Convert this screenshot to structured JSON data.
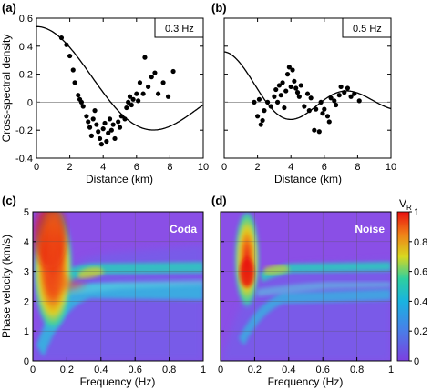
{
  "panels": {
    "a": {
      "label": "(a)",
      "box": "0.3 Hz"
    },
    "b": {
      "label": "(b)",
      "box": "0.5 Hz"
    },
    "c": {
      "label": "(c)",
      "tag": "Coda"
    },
    "d": {
      "label": "(d)",
      "tag": "Noise"
    }
  },
  "colorbar": {
    "label": "V",
    "label_sub": "R",
    "ticks": [
      "0",
      "0.2",
      "0.4",
      "0.6",
      "0.8",
      "1"
    ]
  },
  "colors": {
    "background": "#8a4fe6",
    "ridge": "#e21a12",
    "mid": "#28c4c0",
    "accent": "#f0c000"
  },
  "chart_data": [
    {
      "id": "a",
      "type": "scatter",
      "title": "",
      "xlabel": "Distance (km)",
      "ylabel": "Cross-spectral density",
      "xlim": [
        0,
        10
      ],
      "ylim": [
        -0.4,
        0.6
      ],
      "xticks": [
        "0",
        "2",
        "4",
        "6",
        "8",
        "10"
      ],
      "yticks": [
        "-0.4",
        "-0.2",
        "0",
        "0.2",
        "0.4",
        "0.6"
      ],
      "grid": false,
      "points": [
        [
          1.5,
          0.46
        ],
        [
          1.8,
          0.41
        ],
        [
          2.0,
          0.33
        ],
        [
          2.2,
          0.23
        ],
        [
          2.3,
          0.14
        ],
        [
          2.5,
          0.05
        ],
        [
          2.6,
          0.02
        ],
        [
          2.7,
          0.0
        ],
        [
          2.8,
          -0.03
        ],
        [
          3.0,
          -0.1
        ],
        [
          3.1,
          -0.14
        ],
        [
          3.2,
          -0.18
        ],
        [
          3.3,
          -0.24
        ],
        [
          3.4,
          -0.12
        ],
        [
          3.5,
          -0.06
        ],
        [
          3.6,
          -0.16
        ],
        [
          3.7,
          -0.21
        ],
        [
          3.8,
          -0.26
        ],
        [
          3.9,
          -0.3
        ],
        [
          4.0,
          -0.19
        ],
        [
          4.1,
          -0.15
        ],
        [
          4.2,
          -0.28
        ],
        [
          4.3,
          -0.22
        ],
        [
          4.4,
          -0.12
        ],
        [
          4.5,
          -0.2
        ],
        [
          4.6,
          -0.16
        ],
        [
          4.7,
          -0.26
        ],
        [
          4.9,
          -0.14
        ],
        [
          5.0,
          -0.18
        ],
        [
          5.1,
          -0.1
        ],
        [
          5.3,
          -0.12
        ],
        [
          5.4,
          -0.04
        ],
        [
          5.5,
          0.0
        ],
        [
          5.6,
          0.04
        ],
        [
          5.7,
          -0.02
        ],
        [
          5.8,
          0.02
        ],
        [
          6.0,
          0.06
        ],
        [
          6.1,
          0.01
        ],
        [
          6.2,
          0.14
        ],
        [
          6.4,
          0.06
        ],
        [
          6.5,
          0.32
        ],
        [
          6.7,
          0.11
        ],
        [
          6.9,
          0.18
        ],
        [
          7.1,
          0.21
        ],
        [
          7.3,
          0.06
        ],
        [
          7.6,
          0.14
        ],
        [
          7.9,
          0.04
        ],
        [
          8.2,
          0.22
        ]
      ]
    },
    {
      "id": "b",
      "type": "scatter",
      "title": "",
      "xlabel": "Distance (km)",
      "ylabel": "",
      "xlim": [
        0,
        10
      ],
      "ylim": [
        -0.4,
        0.6
      ],
      "xticks": [
        "0",
        "2",
        "4",
        "6",
        "8",
        "10"
      ],
      "yticks": [],
      "grid": false,
      "points": [
        [
          1.8,
          0.0
        ],
        [
          2.0,
          -0.1
        ],
        [
          2.1,
          0.02
        ],
        [
          2.2,
          -0.16
        ],
        [
          2.3,
          -0.13
        ],
        [
          2.4,
          -0.06
        ],
        [
          2.6,
          0.0
        ],
        [
          2.8,
          -0.03
        ],
        [
          3.0,
          0.04
        ],
        [
          3.1,
          0.09
        ],
        [
          3.2,
          0.0
        ],
        [
          3.3,
          0.12
        ],
        [
          3.4,
          0.05
        ],
        [
          3.5,
          0.14
        ],
        [
          3.6,
          -0.04
        ],
        [
          3.7,
          0.08
        ],
        [
          3.8,
          0.2
        ],
        [
          3.9,
          0.25
        ],
        [
          4.0,
          0.11
        ],
        [
          4.1,
          0.23
        ],
        [
          4.2,
          0.15
        ],
        [
          4.3,
          0.1
        ],
        [
          4.4,
          0.07
        ],
        [
          4.5,
          0.04
        ],
        [
          4.6,
          0.12
        ],
        [
          4.8,
          -0.03
        ],
        [
          5.0,
          0.06
        ],
        [
          5.1,
          -0.06
        ],
        [
          5.2,
          0.03
        ],
        [
          5.4,
          -0.2
        ],
        [
          5.5,
          -0.05
        ],
        [
          5.7,
          -0.21
        ],
        [
          5.8,
          0.0
        ],
        [
          5.9,
          -0.08
        ],
        [
          6.0,
          -0.05
        ],
        [
          6.2,
          -0.1
        ],
        [
          6.3,
          -0.14
        ],
        [
          6.4,
          0.03
        ],
        [
          6.6,
          0.01
        ],
        [
          6.7,
          -0.02
        ],
        [
          6.9,
          0.05
        ],
        [
          7.0,
          0.11
        ],
        [
          7.2,
          0.07
        ],
        [
          7.4,
          0.1
        ],
        [
          7.6,
          0.04
        ],
        [
          7.8,
          0.06
        ],
        [
          8.1,
          0.01
        ]
      ]
    },
    {
      "id": "c",
      "type": "heatmap",
      "title": "",
      "xlabel": "Frequency (Hz)",
      "ylabel": "Phase velocity (km/s)",
      "xlim": [
        0,
        1
      ],
      "ylim": [
        0,
        5
      ],
      "xticks": [
        "0",
        "0.2",
        "0.4",
        "0.6",
        "0.8",
        "1"
      ],
      "yticks": [
        "0",
        "1",
        "2",
        "3",
        "4",
        "5"
      ],
      "grid": true,
      "features": [
        {
          "kind": "hot-band",
          "freq_range": [
            0.03,
            0.15
          ],
          "velocity_range": [
            2.0,
            5.0
          ],
          "vr_peak": 1.0
        },
        {
          "kind": "curve",
          "points": [
            [
              0.15,
              2.2
            ],
            [
              0.2,
              1.9
            ],
            [
              0.3,
              1.75
            ],
            [
              0.4,
              1.7
            ],
            [
              0.6,
              1.7
            ],
            [
              0.8,
              1.7
            ],
            [
              1.0,
              1.7
            ]
          ],
          "vr": 0.45
        },
        {
          "kind": "curve",
          "points": [
            [
              0.2,
              1.6
            ],
            [
              0.3,
              1.4
            ],
            [
              0.4,
              1.3
            ],
            [
              0.6,
              1.25
            ],
            [
              0.8,
              1.2
            ],
            [
              1.0,
              1.2
            ]
          ],
          "vr": 0.4
        }
      ]
    },
    {
      "id": "d",
      "type": "heatmap",
      "title": "",
      "xlabel": "Frequency (Hz)",
      "ylabel": "",
      "xlim": [
        0,
        1
      ],
      "ylim": [
        0,
        5
      ],
      "xticks": [
        "0",
        "0.2",
        "0.4",
        "0.6",
        "0.8",
        "1"
      ],
      "yticks": [],
      "grid": true,
      "features": [
        {
          "kind": "hot-band",
          "freq_range": [
            0.1,
            0.2
          ],
          "velocity_range": [
            2.0,
            4.5
          ],
          "vr_peak": 0.9
        },
        {
          "kind": "curve",
          "points": [
            [
              0.2,
              2.1
            ],
            [
              0.3,
              1.8
            ],
            [
              0.4,
              1.72
            ],
            [
              0.6,
              1.7
            ],
            [
              0.8,
              1.7
            ],
            [
              1.0,
              1.7
            ]
          ],
          "vr": 0.45
        },
        {
          "kind": "curve",
          "points": [
            [
              0.25,
              1.5
            ],
            [
              0.4,
              1.3
            ],
            [
              0.6,
              1.25
            ],
            [
              0.8,
              1.2
            ],
            [
              1.0,
              1.2
            ]
          ],
          "vr": 0.35
        }
      ]
    }
  ]
}
